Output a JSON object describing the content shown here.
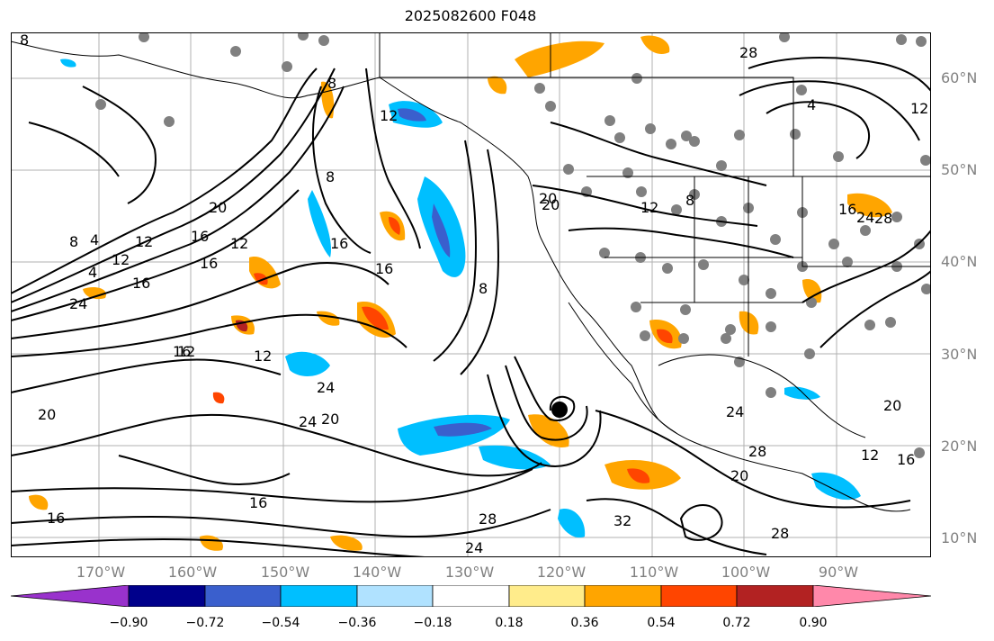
{
  "title": "2025082600 F048",
  "lat_labels": [
    "60°N",
    "50°N",
    "40°N",
    "30°N",
    "20°N",
    "10°N"
  ],
  "lon_labels": [
    "170°W",
    "160°W",
    "150°W",
    "140°W",
    "130°W",
    "120°W",
    "110°W",
    "100°W",
    "90°W"
  ],
  "colorbar": {
    "ticks": [
      "−0.90",
      "−0.72",
      "−0.54",
      "−0.36",
      "−0.18",
      "0.18",
      "0.36",
      "0.54",
      "0.72",
      "0.90"
    ],
    "colors": [
      "#9932cc",
      "#00008b",
      "#3a5fcd",
      "#00bfff",
      "#b0e2ff",
      "#ffffff",
      "#ffec8b",
      "#ffa500",
      "#ff4500",
      "#b22222",
      "#ff88aa"
    ]
  },
  "contour_labels": [
    "8",
    "4",
    "12",
    "8",
    "4",
    "12",
    "20",
    "16",
    "12",
    "8",
    "16",
    "8",
    "12",
    "16",
    "20",
    "24",
    "16",
    "12",
    "20",
    "12",
    "8",
    "16",
    "24",
    "28",
    "16",
    "28",
    "24",
    "32",
    "28",
    "24",
    "28",
    "20",
    "16",
    "12",
    "20",
    "16",
    "12",
    "8",
    "4",
    "12",
    "28",
    "24",
    "20",
    "24",
    "16",
    "16",
    "20"
  ],
  "colors": {
    "land_gray": "#808080",
    "contour": "#000000"
  }
}
